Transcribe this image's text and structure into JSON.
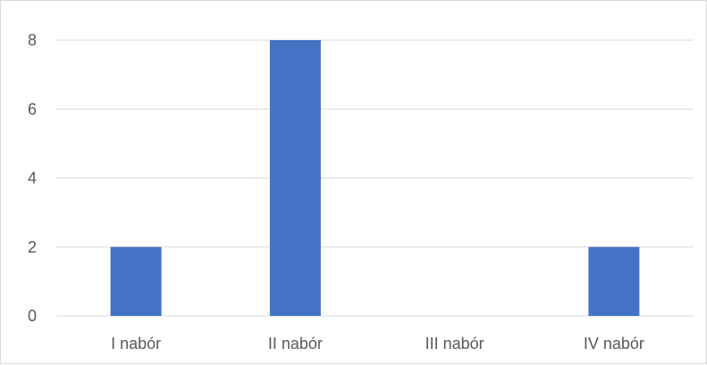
{
  "chart_data": {
    "type": "bar",
    "categories": [
      "I nabór",
      "II nabór",
      "III nabór",
      "IV nabór"
    ],
    "values": [
      2,
      8,
      0,
      2
    ],
    "yticks": [
      "0",
      "2",
      "4",
      "6",
      "8"
    ],
    "ylim": [
      0,
      8
    ],
    "grid": true,
    "legend": "none",
    "bar_color": "#4472C4",
    "grid_color": "#d9d9d9"
  }
}
